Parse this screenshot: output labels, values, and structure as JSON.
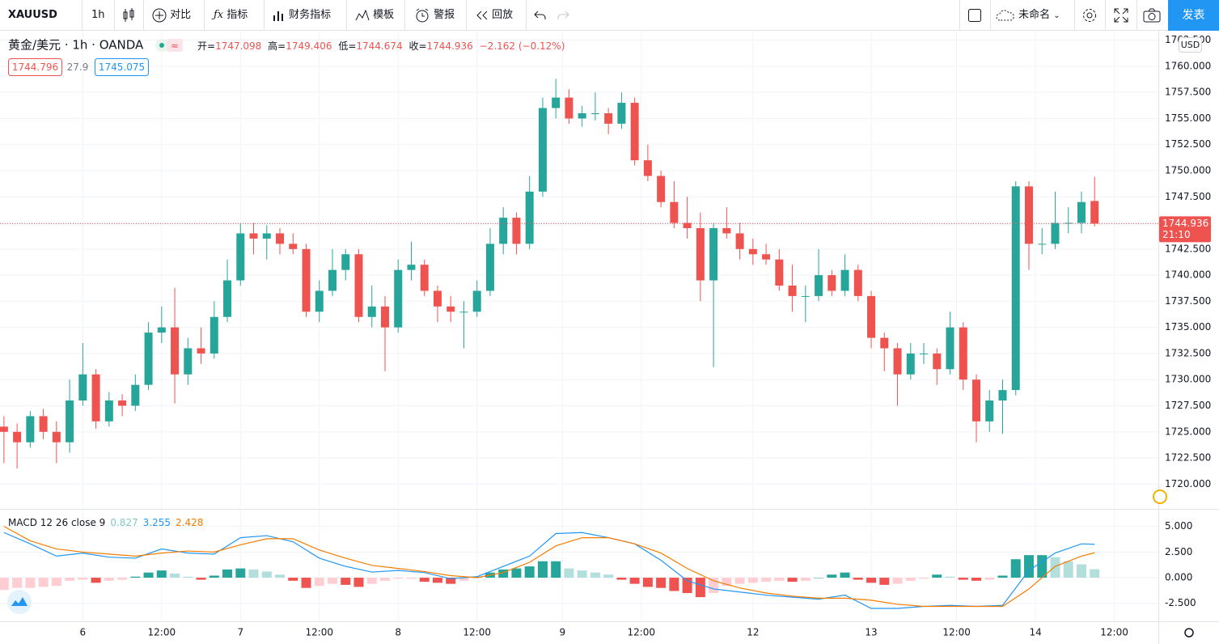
{
  "toolbar": {
    "symbol": "XAUUSD",
    "interval": "1h",
    "compare": "对比",
    "indicators": "指标",
    "financials": "财务指标",
    "templates": "模板",
    "alert": "警报",
    "replay": "回放",
    "layout_name": "未命名",
    "publish": "发表"
  },
  "legend": {
    "open_label": "开=",
    "high_label": "高=",
    "low_label": "低=",
    "close_label": "收=",
    "change": "−2.162 (−0.12%)",
    "bid": "1744.796",
    "spread": "27.9",
    "ask": "1745.075"
  },
  "price_axis": {
    "currency": "USD",
    "countdown": "21:10"
  },
  "chart_data": [
    {
      "type": "candlestick",
      "title": "黄金/美元 · 1h · OANDA",
      "up_color": "#26a69a",
      "down_color": "#ef5350",
      "grid": true,
      "x": [
        0,
        2,
        4,
        6,
        8,
        10,
        12,
        14,
        16,
        18,
        20,
        22,
        24,
        26,
        28,
        30,
        32,
        34,
        36,
        38,
        40,
        42,
        44,
        46,
        48,
        50,
        52,
        54,
        56,
        58,
        60,
        62,
        64,
        66,
        68,
        70,
        72,
        74,
        76,
        78,
        80,
        82,
        84,
        86,
        88,
        90,
        92,
        94,
        96,
        98,
        100,
        102,
        104,
        106,
        108,
        110,
        112,
        114,
        116,
        118,
        120,
        122,
        124,
        126,
        128,
        130,
        132,
        134,
        136,
        138,
        140,
        142,
        144,
        146,
        148,
        150,
        152,
        154,
        156,
        158,
        160,
        162,
        164,
        166
      ],
      "open": [
        1725.5,
        1725,
        1724,
        1726.5,
        1725,
        1724,
        1728,
        1730.5,
        1726,
        1728,
        1727.5,
        1729.5,
        1734.5,
        1735,
        1730.5,
        1733,
        1732.5,
        1736,
        1739.5,
        1744,
        1743.5,
        1744,
        1743,
        1742.5,
        1736.5,
        1738.5,
        1740.5,
        1742,
        1736,
        1737,
        1735,
        1740.5,
        1741,
        1738.5,
        1737,
        1736.5,
        1736.5,
        1738.5,
        1743,
        1745.5,
        1743,
        1748,
        1756,
        1757,
        1755,
        1755.5,
        1755.5,
        1754.5,
        1756.5,
        1751,
        1749.5,
        1747,
        1745,
        1744.5,
        1739.5,
        1744.5,
        1744,
        1742.5,
        1742,
        1741.5,
        1739,
        1738,
        1738,
        1740,
        1738.5,
        1740.5,
        1738,
        1734,
        1733,
        1730.5,
        1732.5,
        1732.5,
        1731,
        1735,
        1730,
        1726,
        1728,
        1729,
        1748.5,
        1743,
        1743,
        1745,
        1745,
        1747.098
      ],
      "high": [
        1726.5,
        1725.8,
        1727,
        1727.2,
        1726,
        1730,
        1733.5,
        1731,
        1728.8,
        1728.6,
        1730.5,
        1735.5,
        1737,
        1738.8,
        1734,
        1735,
        1737.5,
        1741.5,
        1745,
        1745,
        1744.8,
        1744.5,
        1744,
        1743,
        1739.5,
        1742.5,
        1742.5,
        1742.5,
        1739,
        1738,
        1741.5,
        1743.2,
        1741.5,
        1739,
        1738,
        1737.5,
        1739.5,
        1744.5,
        1746.5,
        1746,
        1749.5,
        1757,
        1758.8,
        1757.8,
        1756.2,
        1757.5,
        1756,
        1757.5,
        1757,
        1752.5,
        1750,
        1749,
        1747.5,
        1746,
        1745,
        1746.5,
        1745,
        1743.5,
        1743,
        1742.5,
        1741,
        1739,
        1742.5,
        1740.5,
        1742,
        1741,
        1738.5,
        1734.5,
        1733.5,
        1733.5,
        1733.5,
        1733,
        1736.5,
        1735.5,
        1730.5,
        1729,
        1730,
        1749,
        1749,
        1744.5,
        1748,
        1746.5,
        1748,
        1749.406
      ],
      "low": [
        1722,
        1721.5,
        1723.5,
        1724.3,
        1722,
        1723,
        1727.5,
        1725.3,
        1725.5,
        1726.5,
        1727,
        1729,
        1733.5,
        1727.7,
        1729.5,
        1731.5,
        1732,
        1735.5,
        1739,
        1742,
        1741.5,
        1742,
        1742,
        1736,
        1735.5,
        1738,
        1739.5,
        1735.5,
        1735,
        1730.8,
        1734.5,
        1739.5,
        1738,
        1735.5,
        1735.5,
        1733,
        1736,
        1738,
        1742,
        1742,
        1742.5,
        1747.5,
        1755,
        1754.5,
        1754.2,
        1754.8,
        1753.5,
        1754,
        1750.5,
        1749,
        1746.5,
        1744.5,
        1743.5,
        1737.5,
        1731.2,
        1743.5,
        1741.5,
        1741,
        1741,
        1738.5,
        1736.5,
        1735.5,
        1737.5,
        1738,
        1738,
        1737.5,
        1733,
        1730.8,
        1727.5,
        1730,
        1731.5,
        1729.5,
        1730.5,
        1729,
        1724,
        1725,
        1724.8,
        1728.5,
        1740.5,
        1742,
        1742.5,
        1744,
        1744,
        1744.674
      ],
      "close": [
        1725,
        1724,
        1726.5,
        1725,
        1724,
        1728,
        1730.5,
        1726,
        1728,
        1727.5,
        1729.5,
        1734.5,
        1735,
        1730.5,
        1733,
        1732.5,
        1736,
        1739.5,
        1744,
        1743.5,
        1744,
        1743,
        1742.5,
        1736.5,
        1738.5,
        1740.5,
        1742,
        1736,
        1737,
        1735,
        1740.5,
        1741,
        1738.5,
        1737,
        1736.5,
        1736.5,
        1738.5,
        1743,
        1745.5,
        1743,
        1748,
        1756,
        1757,
        1755,
        1755.5,
        1755.5,
        1754.5,
        1756.5,
        1751,
        1749.5,
        1747,
        1745,
        1744.5,
        1739.5,
        1744.5,
        1744,
        1742.5,
        1742,
        1741.5,
        1739,
        1738,
        1738,
        1740,
        1738.5,
        1740.5,
        1738,
        1734,
        1733,
        1730.5,
        1732.5,
        1732.5,
        1731,
        1735,
        1730,
        1726,
        1728,
        1729,
        1748.5,
        1743,
        1743,
        1745,
        1745,
        1747,
        1744.936
      ],
      "xlim": [
        -0.6,
        175.7
      ],
      "xticks": [
        {
          "value": 12,
          "label": "6"
        },
        {
          "value": 24,
          "label": "12:00"
        },
        {
          "value": 36,
          "label": "7"
        },
        {
          "value": 48,
          "label": "12:00"
        },
        {
          "value": 60,
          "label": "8"
        },
        {
          "value": 72,
          "label": "12:00"
        },
        {
          "value": 85,
          "label": "9"
        },
        {
          "value": 97,
          "label": "12:00"
        },
        {
          "value": 114,
          "label": "12"
        },
        {
          "value": 132,
          "label": "13"
        },
        {
          "value": 145,
          "label": "12:00"
        },
        {
          "value": 157,
          "label": "14"
        },
        {
          "value": 169,
          "label": "12:00"
        }
      ],
      "ylim": [
        1717.7,
        1763.4
      ],
      "yticks": [
        {
          "value": 1720,
          "label": "1720.000"
        },
        {
          "value": 1722.5,
          "label": "1722.500"
        },
        {
          "value": 1725,
          "label": "1725.000"
        },
        {
          "value": 1727.5,
          "label": "1727.500"
        },
        {
          "value": 1730,
          "label": "1730.000"
        },
        {
          "value": 1732.5,
          "label": "1732.500"
        },
        {
          "value": 1735,
          "label": "1735.000"
        },
        {
          "value": 1737.5,
          "label": "1737.500"
        },
        {
          "value": 1740,
          "label": "1740.000"
        },
        {
          "value": 1742.5,
          "label": "1742.500"
        },
        {
          "value": 1745,
          "label": "1745.000"
        },
        {
          "value": 1747.5,
          "label": "1747.500"
        },
        {
          "value": 1750,
          "label": "1750.000"
        },
        {
          "value": 1752.5,
          "label": "1752.500"
        },
        {
          "value": 1755,
          "label": "1755.000"
        },
        {
          "value": 1757.5,
          "label": "1757.500"
        },
        {
          "value": 1760,
          "label": "1760.000"
        },
        {
          "value": 1762.5,
          "label": "1762.500"
        }
      ]
    },
    {
      "type": "macd",
      "title": "MACD 12 26 close 9",
      "grid": true,
      "hist_colors": [
        "#26a69a",
        "#b2dfdb",
        "#ffcdd2",
        "#ef5350"
      ],
      "series": [
        {
          "type": "bar",
          "x": [
            0,
            2,
            4,
            6,
            8,
            10,
            12,
            14,
            16,
            18,
            20,
            22,
            24,
            26,
            28,
            30,
            32,
            34,
            36,
            38,
            40,
            42,
            44,
            46,
            48,
            50,
            52,
            54,
            56,
            58,
            60,
            62,
            64,
            66,
            68,
            70,
            72,
            74,
            76,
            78,
            80,
            82,
            84,
            86,
            88,
            90,
            92,
            94,
            96,
            98,
            100,
            102,
            104,
            106,
            108,
            110,
            112,
            114,
            116,
            118,
            120,
            122,
            124,
            126,
            128,
            130,
            132,
            134,
            136,
            138,
            140,
            142,
            144,
            146,
            148,
            150,
            152,
            154,
            156,
            158,
            160,
            162,
            164,
            166
          ],
          "values": [
            -1.2,
            -1.0,
            -1.0,
            -0.9,
            -0.8,
            -0.3,
            -0.2,
            -0.5,
            -0.3,
            -0.2,
            0.1,
            0.5,
            0.7,
            0.4,
            0.1,
            -0.2,
            0.2,
            0.8,
            0.9,
            0.8,
            0.6,
            0.3,
            -0.3,
            -1.0,
            -0.8,
            -0.6,
            -0.7,
            -0.9,
            -0.6,
            -0.3,
            -0.1,
            -0.1,
            -0.4,
            -0.5,
            -0.6,
            -0.3,
            0.1,
            0.5,
            0.8,
            0.9,
            1.1,
            1.6,
            1.6,
            0.9,
            0.7,
            0.5,
            0.3,
            -0.2,
            -0.6,
            -0.9,
            -1.0,
            -1.3,
            -1.5,
            -1.9,
            -1.5,
            -0.8,
            -0.6,
            -0.5,
            -0.4,
            -0.3,
            -0.4,
            -0.3,
            0.0,
            0.3,
            0.5,
            -0.2,
            -0.5,
            -0.7,
            -0.6,
            -0.3,
            -0.1,
            0.3,
            0.1,
            -0.2,
            -0.3,
            -0.2,
            0.2,
            1.8,
            2.2,
            2.2,
            2.0,
            1.6,
            1.3,
            0.827
          ],
          "color": "#26a69a"
        },
        {
          "type": "line",
          "color": "#2196f3",
          "x": [
            0,
            4,
            8,
            12,
            16,
            20,
            24,
            28,
            32,
            36,
            40,
            44,
            48,
            52,
            56,
            60,
            64,
            68,
            72,
            76,
            80,
            84,
            88,
            92,
            96,
            100,
            104,
            108,
            112,
            116,
            120,
            124,
            128,
            132,
            136,
            140,
            144,
            148,
            152,
            156,
            160,
            164,
            166
          ],
          "values": [
            4.4,
            3.3,
            2.1,
            2.4,
            2.0,
            1.9,
            2.8,
            2.4,
            2.3,
            3.9,
            4.1,
            3.5,
            1.9,
            1.1,
            0.55,
            0.7,
            0.5,
            -0.1,
            0.1,
            1.1,
            2.1,
            4.3,
            4.4,
            3.9,
            3.3,
            1.7,
            -0.3,
            -1.1,
            -1.4,
            -1.7,
            -1.9,
            -2.1,
            -1.7,
            -3.0,
            -3.0,
            -2.8,
            -2.7,
            -2.8,
            -2.7,
            0.7,
            2.4,
            3.3,
            3.255
          ]
        },
        {
          "type": "line",
          "color": "#f57c00",
          "x": [
            0,
            4,
            8,
            12,
            16,
            20,
            24,
            28,
            32,
            36,
            40,
            44,
            48,
            52,
            56,
            60,
            64,
            68,
            72,
            76,
            80,
            84,
            88,
            92,
            96,
            100,
            104,
            108,
            112,
            116,
            120,
            124,
            128,
            132,
            136,
            140,
            144,
            148,
            152,
            156,
            160,
            164,
            166
          ],
          "values": [
            5.0,
            3.6,
            2.8,
            2.5,
            2.3,
            2.1,
            2.4,
            2.6,
            2.5,
            3.2,
            3.8,
            3.8,
            2.7,
            1.9,
            1.2,
            0.9,
            0.6,
            0.2,
            0.0,
            0.5,
            1.5,
            3.1,
            3.9,
            3.9,
            3.3,
            2.4,
            0.9,
            -0.3,
            -1.0,
            -1.5,
            -1.8,
            -2.0,
            -2.0,
            -2.2,
            -2.6,
            -2.8,
            -2.8,
            -2.8,
            -2.8,
            -1.1,
            1.1,
            2.1,
            2.428
          ]
        }
      ],
      "xlim": [
        -0.6,
        175.7
      ],
      "ylim": [
        -4.26,
        6.63
      ],
      "yticks": [
        {
          "value": -2.5,
          "label": "-2.500"
        },
        {
          "value": 0,
          "label": "0.000"
        },
        {
          "value": 2.5,
          "label": "2.500"
        },
        {
          "value": 5,
          "label": "5.000"
        }
      ]
    }
  ]
}
